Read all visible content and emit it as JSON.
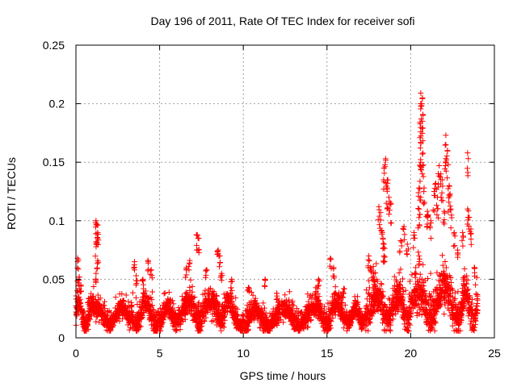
{
  "chart_data": {
    "type": "scatter",
    "title": "Day 196 of 2011, Rate Of TEC Index for receiver sofi",
    "xlabel": "GPS time / hours",
    "ylabel": "ROTI / TECUs",
    "xlim": [
      0,
      25
    ],
    "ylim": [
      0,
      0.25
    ],
    "x_ticks": [
      0,
      5,
      10,
      15,
      20,
      25
    ],
    "x_tick_labels": [
      "0",
      "5",
      "10",
      "15",
      "20",
      "25"
    ],
    "y_ticks": [
      0,
      0.05,
      0.1,
      0.15,
      0.2,
      0.25
    ],
    "y_tick_labels": [
      "0",
      "0.05",
      "0.1",
      "0.15",
      "0.2",
      "0.25"
    ],
    "grid": true,
    "marker": "+",
    "color": "#ff0000",
    "data_range_x": [
      0,
      24
    ],
    "series": [
      {
        "name": "ROTI",
        "points": [
          [
            0.1,
            0.068
          ],
          [
            0.2,
            0.052
          ],
          [
            0.3,
            0.045
          ],
          [
            1.2,
            0.1
          ],
          [
            1.25,
            0.097
          ],
          [
            1.3,
            0.09
          ],
          [
            1.2,
            0.082
          ],
          [
            1.3,
            0.066
          ],
          [
            1.2,
            0.055
          ],
          [
            3.6,
            0.053
          ],
          [
            3.5,
            0.065
          ],
          [
            4.3,
            0.066
          ],
          [
            4.5,
            0.058
          ],
          [
            4.0,
            0.05
          ],
          [
            6.8,
            0.066
          ],
          [
            6.6,
            0.06
          ],
          [
            7.2,
            0.088
          ],
          [
            7.3,
            0.085
          ],
          [
            7.8,
            0.058
          ],
          [
            8.5,
            0.075
          ],
          [
            8.6,
            0.07
          ],
          [
            8.7,
            0.055
          ],
          [
            9.3,
            0.05
          ],
          [
            10.3,
            0.043
          ],
          [
            11.3,
            0.05
          ],
          [
            12.0,
            0.038
          ],
          [
            14.5,
            0.05
          ],
          [
            15.2,
            0.068
          ],
          [
            15.4,
            0.06
          ],
          [
            16.0,
            0.042
          ],
          [
            17.5,
            0.07
          ],
          [
            17.8,
            0.055
          ],
          [
            17.6,
            0.06
          ],
          [
            18.1,
            0.112
          ],
          [
            18.2,
            0.107
          ],
          [
            18.3,
            0.09
          ],
          [
            18.4,
            0.08
          ],
          [
            18.4,
            0.145
          ],
          [
            18.5,
            0.153
          ],
          [
            18.6,
            0.135
          ],
          [
            18.7,
            0.12
          ],
          [
            18.8,
            0.115
          ],
          [
            18.6,
            0.128
          ],
          [
            18.4,
            0.07
          ],
          [
            19.4,
            0.083
          ],
          [
            19.6,
            0.095
          ],
          [
            19.8,
            0.08
          ],
          [
            20.2,
            0.09
          ],
          [
            20.3,
            0.06
          ],
          [
            20.5,
            0.07
          ],
          [
            20.6,
            0.209
          ],
          [
            20.6,
            0.2
          ],
          [
            20.7,
            0.205
          ],
          [
            20.7,
            0.185
          ],
          [
            20.6,
            0.176
          ],
          [
            20.6,
            0.167
          ],
          [
            20.7,
            0.157
          ],
          [
            20.6,
            0.15
          ],
          [
            20.5,
            0.128
          ],
          [
            20.6,
            0.12
          ],
          [
            20.8,
            0.128
          ],
          [
            20.5,
            0.11
          ],
          [
            21.0,
            0.108
          ],
          [
            21.0,
            0.105
          ],
          [
            21.2,
            0.1
          ],
          [
            21.4,
            0.125
          ],
          [
            21.5,
            0.132
          ],
          [
            21.6,
            0.12
          ],
          [
            21.7,
            0.147
          ],
          [
            21.8,
            0.14
          ],
          [
            21.9,
            0.135
          ],
          [
            22.0,
            0.108
          ],
          [
            22.1,
            0.165
          ],
          [
            22.1,
            0.173
          ],
          [
            22.2,
            0.16
          ],
          [
            22.3,
            0.13
          ],
          [
            22.3,
            0.122
          ],
          [
            22.4,
            0.11
          ],
          [
            22.6,
            0.09
          ],
          [
            22.8,
            0.075
          ],
          [
            23.1,
            0.09
          ],
          [
            23.4,
            0.158
          ],
          [
            23.4,
            0.11
          ],
          [
            23.5,
            0.103
          ],
          [
            23.6,
            0.093
          ],
          [
            23.2,
            0.05
          ],
          [
            23.8,
            0.06
          ]
        ],
        "clusters": [
          {
            "x": [
              0.0,
              1.1
            ],
            "base": [
              0.008,
              0.028
            ],
            "spread": [
              0.005,
              0.05
            ]
          },
          {
            "x": [
              1.1,
              3.3
            ],
            "base": [
              0.01,
              0.024
            ],
            "spread": [
              0.006,
              0.035
            ]
          },
          {
            "x": [
              3.3,
              5.0
            ],
            "base": [
              0.01,
              0.028
            ],
            "spread": [
              0.008,
              0.045
            ]
          },
          {
            "x": [
              5.0,
              6.5
            ],
            "base": [
              0.01,
              0.025
            ],
            "spread": [
              0.008,
              0.035
            ]
          },
          {
            "x": [
              6.5,
              8.2
            ],
            "base": [
              0.012,
              0.03
            ],
            "spread": [
              0.01,
              0.045
            ]
          },
          {
            "x": [
              8.2,
              9.6
            ],
            "base": [
              0.013,
              0.03
            ],
            "spread": [
              0.01,
              0.045
            ]
          },
          {
            "x": [
              9.6,
              11.8
            ],
            "base": [
              0.008,
              0.022
            ],
            "spread": [
              0.008,
              0.035
            ]
          },
          {
            "x": [
              11.8,
              14.3
            ],
            "base": [
              0.01,
              0.024
            ],
            "spread": [
              0.008,
              0.035
            ]
          },
          {
            "x": [
              14.3,
              16.2
            ],
            "base": [
              0.01,
              0.028
            ],
            "spread": [
              0.008,
              0.045
            ]
          },
          {
            "x": [
              16.2,
              17.3
            ],
            "base": [
              0.012,
              0.024
            ],
            "spread": [
              0.008,
              0.025
            ]
          },
          {
            "x": [
              17.3,
              19.2
            ],
            "base": [
              0.015,
              0.035
            ],
            "spread": [
              0.01,
              0.065
            ]
          },
          {
            "x": [
              19.2,
              20.4
            ],
            "base": [
              0.012,
              0.035
            ],
            "spread": [
              0.01,
              0.06
            ]
          },
          {
            "x": [
              20.4,
              22.7
            ],
            "base": [
              0.015,
              0.04
            ],
            "spread": [
              0.015,
              0.075
            ]
          },
          {
            "x": [
              22.7,
              24.0
            ],
            "base": [
              0.012,
              0.035
            ],
            "spread": [
              0.01,
              0.06
            ]
          }
        ]
      }
    ]
  }
}
